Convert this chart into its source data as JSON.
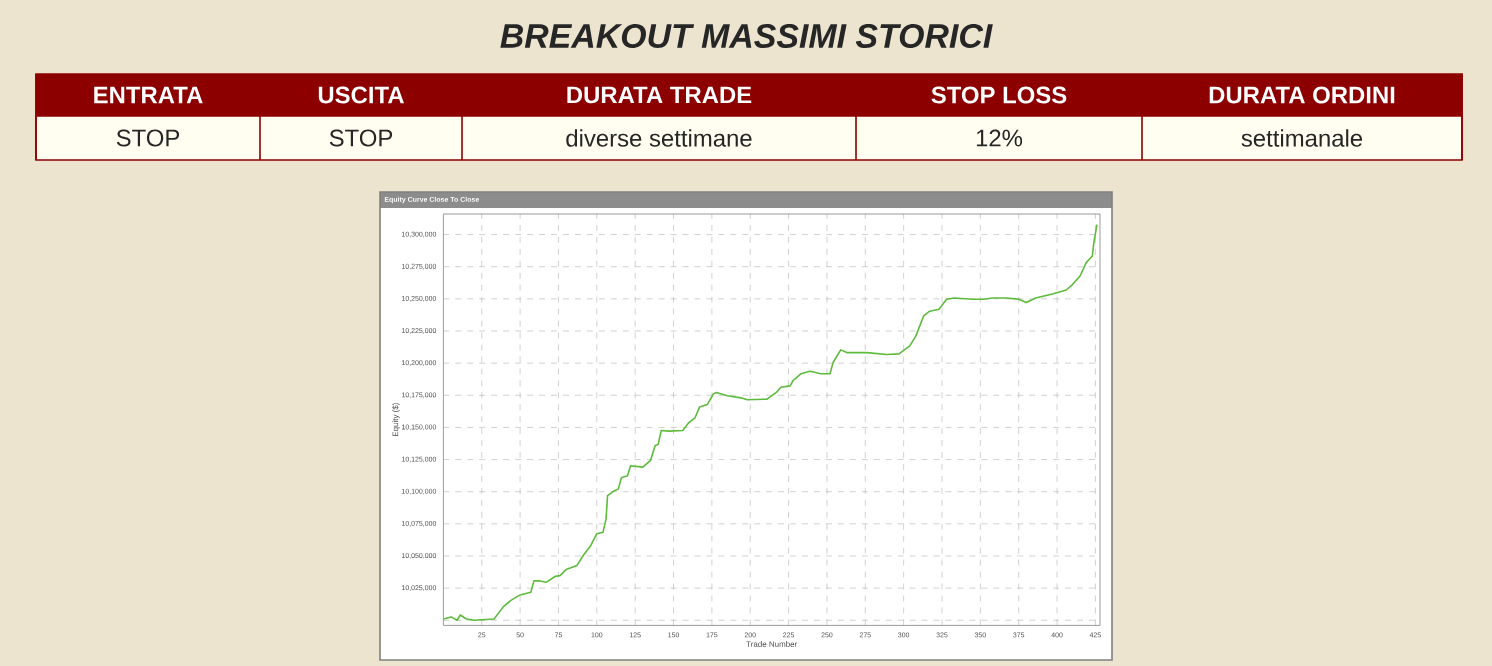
{
  "chart_data": [
    {
      "type": "other",
      "title": "BREAKOUT MASSIMI STORICI",
      "categories": [
        "ENTRATA",
        "USCITA",
        "DURATA TRADE",
        "STOP LOSS",
        "DURATA ORDINI"
      ],
      "annotations": [
        "STOP",
        "STOP",
        "diverse settimane",
        "12%",
        "settimanale"
      ]
    },
    {
      "type": "line",
      "title": "Equity Curve Close To Close",
      "xlabel": "Trade Number",
      "ylabel": "Equity ($)",
      "grid": true,
      "color": "#5dbb3c",
      "line_style": "solid",
      "xlim": [
        0,
        428
      ],
      "ylim": [
        9996000,
        10316000
      ],
      "xticks": [
        25,
        50,
        75,
        100,
        125,
        150,
        175,
        200,
        225,
        250,
        275,
        300,
        325,
        350,
        375,
        400,
        425
      ],
      "yticks": [
        {
          "value": 10000000,
          "label": null
        },
        {
          "value": 10025000,
          "label": "10,025,000"
        },
        {
          "value": 10050000,
          "label": "10,050,000"
        },
        {
          "value": 10075000,
          "label": "10,075,000"
        },
        {
          "value": 10100000,
          "label": "10,100,000"
        },
        {
          "value": 10125000,
          "label": "10,125,000"
        },
        {
          "value": 10150000,
          "label": "10,150,000"
        },
        {
          "value": 10175000,
          "label": "10,175,000"
        },
        {
          "value": 10200000,
          "label": "10,200,000"
        },
        {
          "value": 10225000,
          "label": "10,225,000"
        },
        {
          "value": 10250000,
          "label": "10,250,000"
        },
        {
          "value": 10275000,
          "label": "10,275,000"
        },
        {
          "value": 10300000,
          "label": "10,300,000"
        }
      ],
      "x": [
        0,
        5,
        9,
        11,
        15,
        20,
        33,
        39,
        44,
        50,
        57,
        59,
        63,
        67,
        73,
        76,
        80,
        87,
        91,
        96,
        100,
        104,
        106,
        107,
        111,
        114,
        116,
        120,
        122,
        130,
        135,
        138,
        140,
        142,
        147,
        156,
        160,
        164,
        167,
        172,
        176,
        178,
        185,
        194,
        198,
        211,
        217,
        220,
        226,
        228,
        233,
        239,
        246,
        252,
        254,
        259,
        263,
        276,
        289,
        297,
        304,
        308,
        313,
        317,
        323,
        328,
        333,
        345,
        352,
        358,
        367,
        375,
        380,
        386,
        397,
        406,
        410,
        415,
        419,
        423,
        424,
        426
      ],
      "values": [
        10001000,
        10002600,
        10000000,
        10004100,
        10001000,
        10000000,
        10001000,
        10010400,
        10015500,
        10019700,
        10021800,
        10030600,
        10030600,
        10029500,
        10034200,
        10034700,
        10039400,
        10042500,
        10050200,
        10058000,
        10067300,
        10068400,
        10078700,
        10096900,
        10100500,
        10102000,
        10110900,
        10112400,
        10120200,
        10119100,
        10124300,
        10135700,
        10136800,
        10147600,
        10147100,
        10147600,
        10153800,
        10157500,
        10165800,
        10167800,
        10176100,
        10177200,
        10174600,
        10173000,
        10171500,
        10172000,
        10177200,
        10181300,
        10182300,
        10186500,
        10191700,
        10193700,
        10191700,
        10191700,
        10200500,
        10210300,
        10208200,
        10208200,
        10206700,
        10207200,
        10213400,
        10221200,
        10236700,
        10240400,
        10241900,
        10249700,
        10250700,
        10249700,
        10249700,
        10250700,
        10250700,
        10249700,
        10247100,
        10250700,
        10253800,
        10256900,
        10261100,
        10267800,
        10278200,
        10283300,
        10293700,
        10307700
      ]
    }
  ]
}
